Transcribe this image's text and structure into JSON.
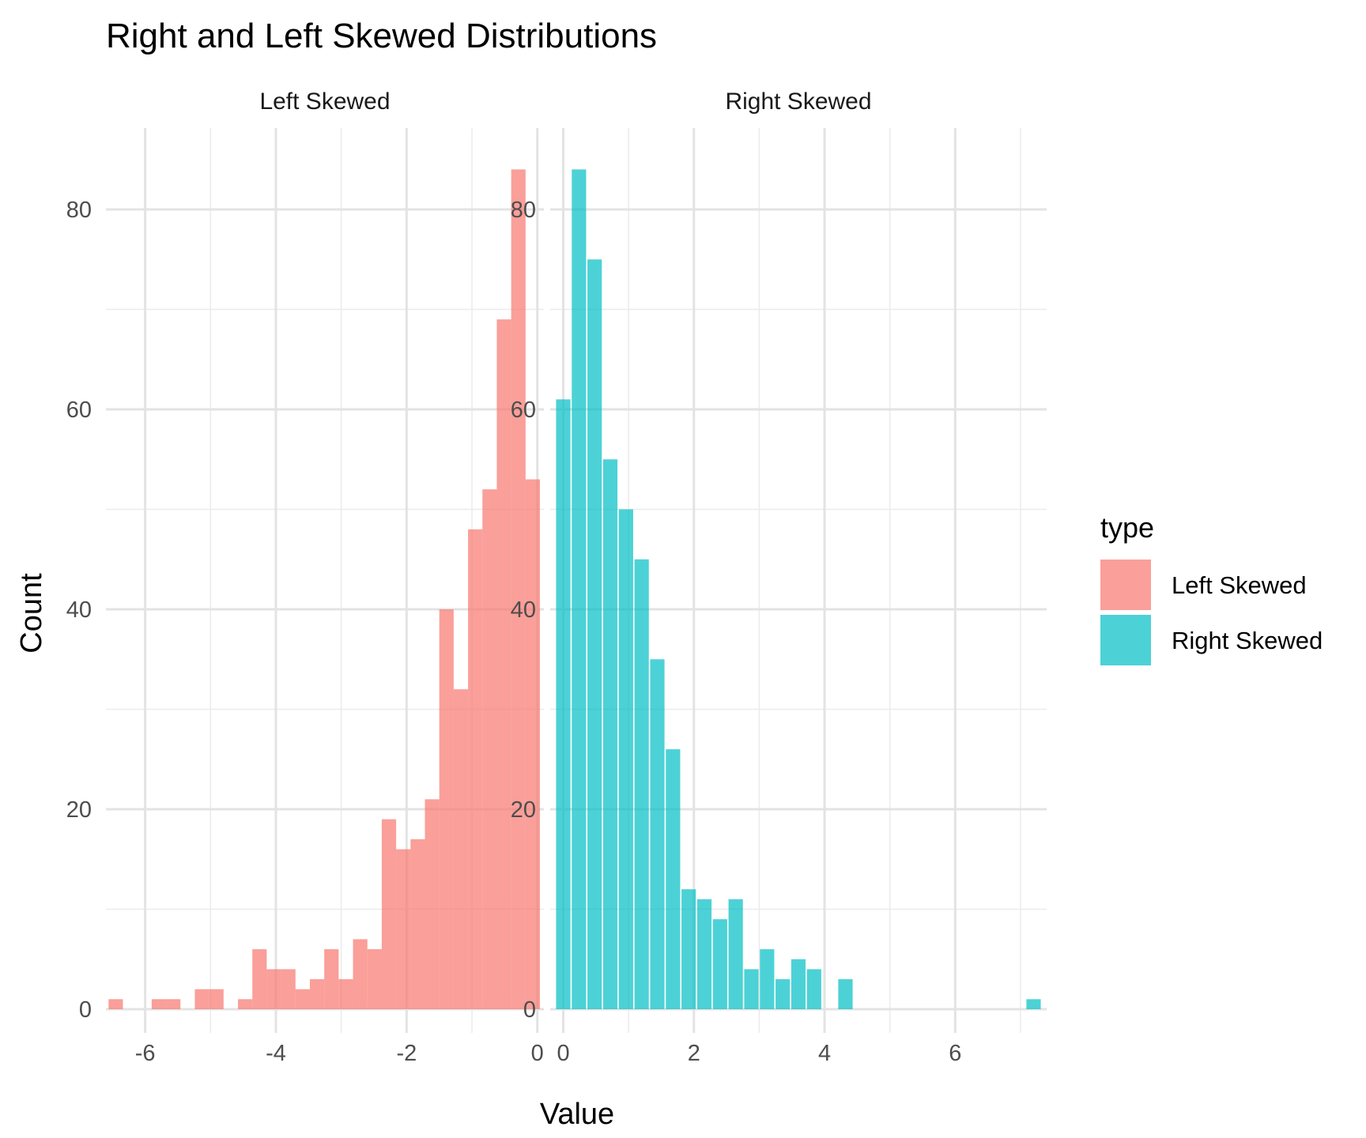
{
  "chart_data": {
    "type": "bar",
    "title": "Right and Left Skewed Distributions",
    "xlabel": "Value",
    "ylabel": "Count",
    "legend": {
      "title": "type",
      "placement": "right",
      "entries": [
        {
          "label": "Left Skewed",
          "color": "#F8766D"
        },
        {
          "label": "Right Skewed",
          "color": "#00BFC4"
        }
      ]
    },
    "grid": true,
    "bin_width": 0.22,
    "ylim": [
      0,
      84
    ],
    "yticks": [
      0,
      20,
      40,
      60,
      80
    ],
    "panels": [
      {
        "strip_label": "Left Skewed",
        "color": "#F8766D",
        "xlim": [
          -6.6,
          0.1
        ],
        "xticks": [
          -6,
          -4,
          -2,
          0
        ],
        "bins": [
          {
            "x": -6.45,
            "count": 1
          },
          {
            "x": -6.23,
            "count": 0
          },
          {
            "x": -6.01,
            "count": 0
          },
          {
            "x": -5.79,
            "count": 1
          },
          {
            "x": -5.57,
            "count": 1
          },
          {
            "x": -5.35,
            "count": 0
          },
          {
            "x": -5.13,
            "count": 2
          },
          {
            "x": -4.91,
            "count": 2
          },
          {
            "x": -4.69,
            "count": 0
          },
          {
            "x": -4.47,
            "count": 1
          },
          {
            "x": -4.25,
            "count": 6
          },
          {
            "x": -4.03,
            "count": 4
          },
          {
            "x": -3.81,
            "count": 4
          },
          {
            "x": -3.59,
            "count": 2
          },
          {
            "x": -3.37,
            "count": 3
          },
          {
            "x": -3.15,
            "count": 6
          },
          {
            "x": -2.93,
            "count": 3
          },
          {
            "x": -2.71,
            "count": 7
          },
          {
            "x": -2.49,
            "count": 6
          },
          {
            "x": -2.27,
            "count": 19
          },
          {
            "x": -2.05,
            "count": 16
          },
          {
            "x": -1.83,
            "count": 17
          },
          {
            "x": -1.61,
            "count": 21
          },
          {
            "x": -1.39,
            "count": 40
          },
          {
            "x": -1.17,
            "count": 32
          },
          {
            "x": -0.95,
            "count": 48
          },
          {
            "x": -0.73,
            "count": 52
          },
          {
            "x": -0.51,
            "count": 69
          },
          {
            "x": -0.29,
            "count": 84
          },
          {
            "x": -0.07,
            "count": 53
          }
        ]
      },
      {
        "strip_label": "Right Skewed",
        "color": "#00BFC4",
        "xlim": [
          -0.2,
          7.4
        ],
        "xticks": [
          0,
          2,
          4,
          6
        ],
        "bins": [
          {
            "x": 0.0,
            "count": 61
          },
          {
            "x": 0.24,
            "count": 84
          },
          {
            "x": 0.48,
            "count": 75
          },
          {
            "x": 0.72,
            "count": 55
          },
          {
            "x": 0.96,
            "count": 50
          },
          {
            "x": 1.2,
            "count": 45
          },
          {
            "x": 1.44,
            "count": 35
          },
          {
            "x": 1.68,
            "count": 26
          },
          {
            "x": 1.92,
            "count": 12
          },
          {
            "x": 2.16,
            "count": 11
          },
          {
            "x": 2.4,
            "count": 9
          },
          {
            "x": 2.64,
            "count": 11
          },
          {
            "x": 2.88,
            "count": 4
          },
          {
            "x": 3.12,
            "count": 6
          },
          {
            "x": 3.36,
            "count": 3
          },
          {
            "x": 3.6,
            "count": 5
          },
          {
            "x": 3.84,
            "count": 4
          },
          {
            "x": 4.08,
            "count": 0
          },
          {
            "x": 4.32,
            "count": 3
          },
          {
            "x": 7.2,
            "count": 1
          }
        ]
      }
    ]
  }
}
